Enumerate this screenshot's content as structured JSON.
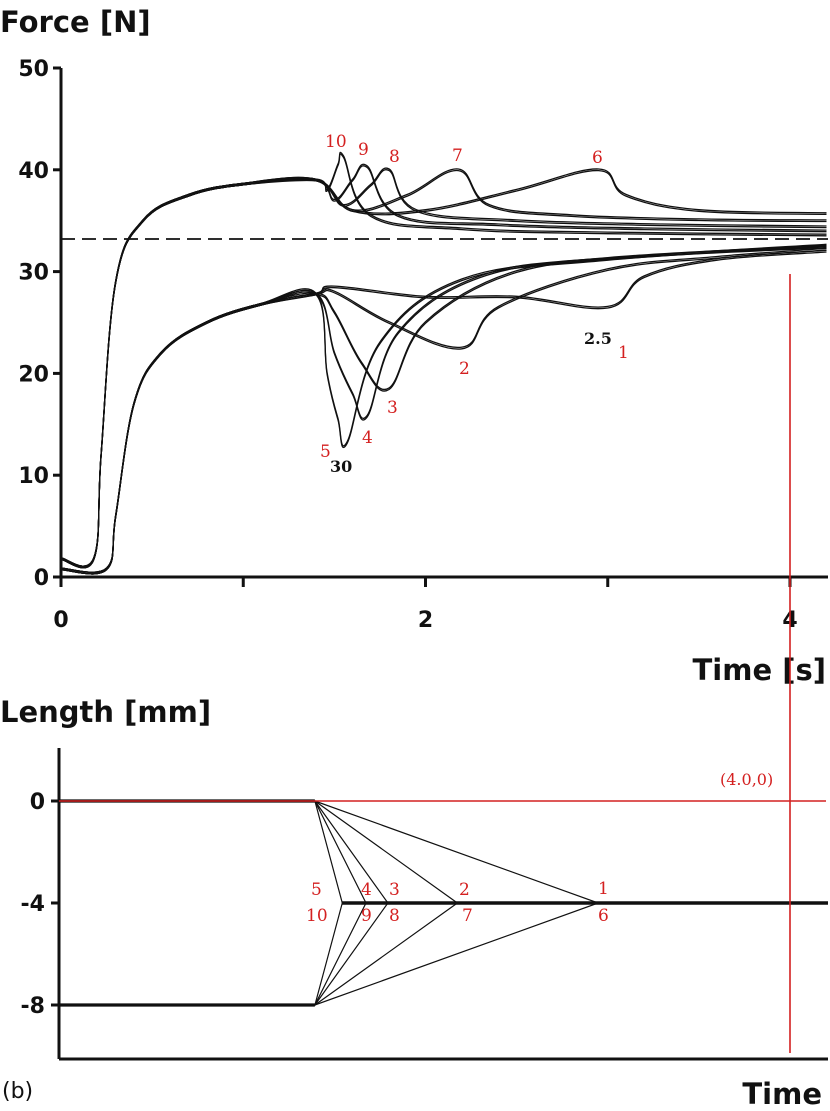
{
  "figure": {
    "panel_label": "(b)"
  },
  "chart_data": [
    {
      "type": "line",
      "title": "",
      "ylabel": "Force [N]",
      "xlabel": "Time [s]",
      "xlim": [
        0,
        4.2
      ],
      "ylim": [
        0,
        50
      ],
      "xticks": [
        0,
        2,
        4
      ],
      "yticks": [
        0,
        10,
        20,
        30,
        40,
        50
      ],
      "grid": false,
      "reference_line": {
        "y": 33.2,
        "style": "dashed"
      },
      "upper_curve_labels": [
        "10",
        "9",
        "8",
        "7",
        "6"
      ],
      "lower_curve_labels": [
        "5",
        "4",
        "3",
        "2",
        "1"
      ],
      "black_annotations": [
        "2.5",
        "30"
      ],
      "series": [
        {
          "label": "1",
          "group": "lower",
          "x": [
            0,
            0.25,
            0.3,
            0.4,
            0.55,
            0.8,
            1.1,
            1.4,
            1.5,
            2.0,
            2.5,
            3.0,
            3.2,
            3.6,
            4.2
          ],
          "y": [
            0.8,
            0.8,
            6,
            17,
            22,
            25,
            26.8,
            27.8,
            28.5,
            27.5,
            27.5,
            26.5,
            29.5,
            31.2,
            32.0
          ]
        },
        {
          "label": "2",
          "group": "lower",
          "x": [
            0,
            0.25,
            0.3,
            0.4,
            0.55,
            0.8,
            1.1,
            1.4,
            1.5,
            1.8,
            2.2,
            2.4,
            3.0,
            3.6,
            4.2
          ],
          "y": [
            0.8,
            0.8,
            6,
            17,
            22,
            25,
            26.8,
            27.8,
            28,
            25,
            22.5,
            26.5,
            30.2,
            31.4,
            32.2
          ]
        },
        {
          "label": "3",
          "group": "lower",
          "x": [
            0,
            0.25,
            0.3,
            0.4,
            0.55,
            0.8,
            1.1,
            1.4,
            1.5,
            1.65,
            1.8,
            2.0,
            2.5,
            3.2,
            4.2
          ],
          "y": [
            0.8,
            0.8,
            6,
            17,
            22,
            25,
            26.8,
            27.8,
            26,
            21,
            18.5,
            25,
            30,
            31.5,
            32.4
          ]
        },
        {
          "label": "4",
          "group": "lower",
          "x": [
            0,
            0.25,
            0.3,
            0.4,
            0.55,
            0.8,
            1.1,
            1.4,
            1.5,
            1.6,
            1.68,
            1.85,
            2.3,
            3.0,
            4.2
          ],
          "y": [
            0.8,
            0.8,
            6,
            17,
            22,
            25,
            26.8,
            27.8,
            22,
            18,
            15.8,
            24,
            29.5,
            31.3,
            32.5
          ]
        },
        {
          "label": "5",
          "group": "lower",
          "x": [
            0,
            0.25,
            0.3,
            0.4,
            0.55,
            0.8,
            1.1,
            1.4,
            1.46,
            1.52,
            1.57,
            1.75,
            2.2,
            3.0,
            4.2
          ],
          "y": [
            0.8,
            0.8,
            6,
            17,
            22,
            25,
            26.8,
            27.8,
            20,
            15.5,
            13.2,
            23,
            29.2,
            31.2,
            32.6
          ]
        },
        {
          "label": "6",
          "group": "upper",
          "x": [
            0,
            0.18,
            0.22,
            0.3,
            0.45,
            0.7,
            1.0,
            1.4,
            1.6,
            2.0,
            2.5,
            2.95,
            3.1,
            3.5,
            4.2
          ],
          "y": [
            1.8,
            1.8,
            12,
            29,
            35,
            37.5,
            38.6,
            39,
            36,
            36,
            38,
            40,
            37.5,
            36,
            35.7
          ]
        },
        {
          "label": "7",
          "group": "upper",
          "x": [
            0,
            0.18,
            0.22,
            0.3,
            0.45,
            0.7,
            1.0,
            1.4,
            1.6,
            1.9,
            2.18,
            2.35,
            2.8,
            3.5,
            4.2
          ],
          "y": [
            1.8,
            1.8,
            12,
            29,
            35,
            37.5,
            38.6,
            39,
            36,
            37.5,
            40,
            36.5,
            35.5,
            35.1,
            35.0
          ]
        },
        {
          "label": "8",
          "group": "upper",
          "x": [
            0,
            0.18,
            0.22,
            0.3,
            0.45,
            0.7,
            1.0,
            1.4,
            1.55,
            1.7,
            1.8,
            1.95,
            2.5,
            3.3,
            4.2
          ],
          "y": [
            1.8,
            1.8,
            12,
            29,
            35,
            37.5,
            38.6,
            39,
            36.5,
            38.5,
            40,
            36,
            35,
            34.6,
            34.4
          ]
        },
        {
          "label": "9",
          "group": "upper",
          "x": [
            0,
            0.18,
            0.22,
            0.3,
            0.45,
            0.7,
            1.0,
            1.4,
            1.5,
            1.6,
            1.68,
            1.85,
            2.4,
            3.2,
            4.2
          ],
          "y": [
            1.8,
            1.8,
            12,
            29,
            35,
            37.5,
            38.6,
            39,
            37,
            39,
            40.3,
            35.5,
            34.6,
            34.2,
            34.0
          ]
        },
        {
          "label": "10",
          "group": "upper",
          "x": [
            0,
            0.18,
            0.22,
            0.3,
            0.45,
            0.7,
            1.0,
            1.4,
            1.46,
            1.52,
            1.55,
            1.7,
            2.2,
            3.0,
            4.2
          ],
          "y": [
            1.8,
            1.8,
            12,
            29,
            35,
            37.5,
            38.6,
            39,
            38,
            40.5,
            41.3,
            35.5,
            34.2,
            33.8,
            33.6
          ]
        }
      ]
    },
    {
      "type": "line",
      "title": "",
      "ylabel": "Length [mm]",
      "xlabel": "Time",
      "xlim": [
        0,
        4.2
      ],
      "ylim": [
        -10.5,
        2
      ],
      "yticks": [
        0,
        -4,
        -8
      ],
      "grid": false,
      "annotation": {
        "text": "(4.0,0)",
        "x": 4.0,
        "y": 0
      },
      "upper_curve_labels": [
        "5",
        "4",
        "3",
        "2",
        "1"
      ],
      "lower_curve_labels": [
        "10",
        "9",
        "8",
        "7",
        "6"
      ],
      "series": [
        {
          "label": "1",
          "group": "upper",
          "x": [
            0,
            1.4,
            2.95,
            4.2
          ],
          "y": [
            0,
            0,
            -4,
            -4
          ]
        },
        {
          "label": "2",
          "group": "upper",
          "x": [
            0,
            1.4,
            2.18,
            4.2
          ],
          "y": [
            0,
            0,
            -4,
            -4
          ]
        },
        {
          "label": "3",
          "group": "upper",
          "x": [
            0,
            1.4,
            1.8,
            4.2
          ],
          "y": [
            0,
            0,
            -4,
            -4
          ]
        },
        {
          "label": "4",
          "group": "upper",
          "x": [
            0,
            1.4,
            1.68,
            4.2
          ],
          "y": [
            0,
            0,
            -4,
            -4
          ]
        },
        {
          "label": "5",
          "group": "upper",
          "x": [
            0,
            1.4,
            1.55,
            4.2
          ],
          "y": [
            0,
            0,
            -4,
            -4
          ]
        },
        {
          "label": "6",
          "group": "lower",
          "x": [
            0,
            1.4,
            2.95,
            4.2
          ],
          "y": [
            -8,
            -8,
            -4,
            -4
          ]
        },
        {
          "label": "7",
          "group": "lower",
          "x": [
            0,
            1.4,
            2.18,
            4.2
          ],
          "y": [
            -8,
            -8,
            -4,
            -4
          ]
        },
        {
          "label": "8",
          "group": "lower",
          "x": [
            0,
            1.4,
            1.8,
            4.2
          ],
          "y": [
            -8,
            -8,
            -4,
            -4
          ]
        },
        {
          "label": "9",
          "group": "lower",
          "x": [
            0,
            1.4,
            1.68,
            4.2
          ],
          "y": [
            -8,
            -8,
            -4,
            -4
          ]
        },
        {
          "label": "10",
          "group": "lower",
          "x": [
            0,
            1.4,
            1.55,
            4.2
          ],
          "y": [
            -8,
            -8,
            -4,
            -4
          ]
        }
      ]
    }
  ],
  "overlay": {
    "vertical_marker_x": 4.0,
    "color": "#d42020"
  }
}
